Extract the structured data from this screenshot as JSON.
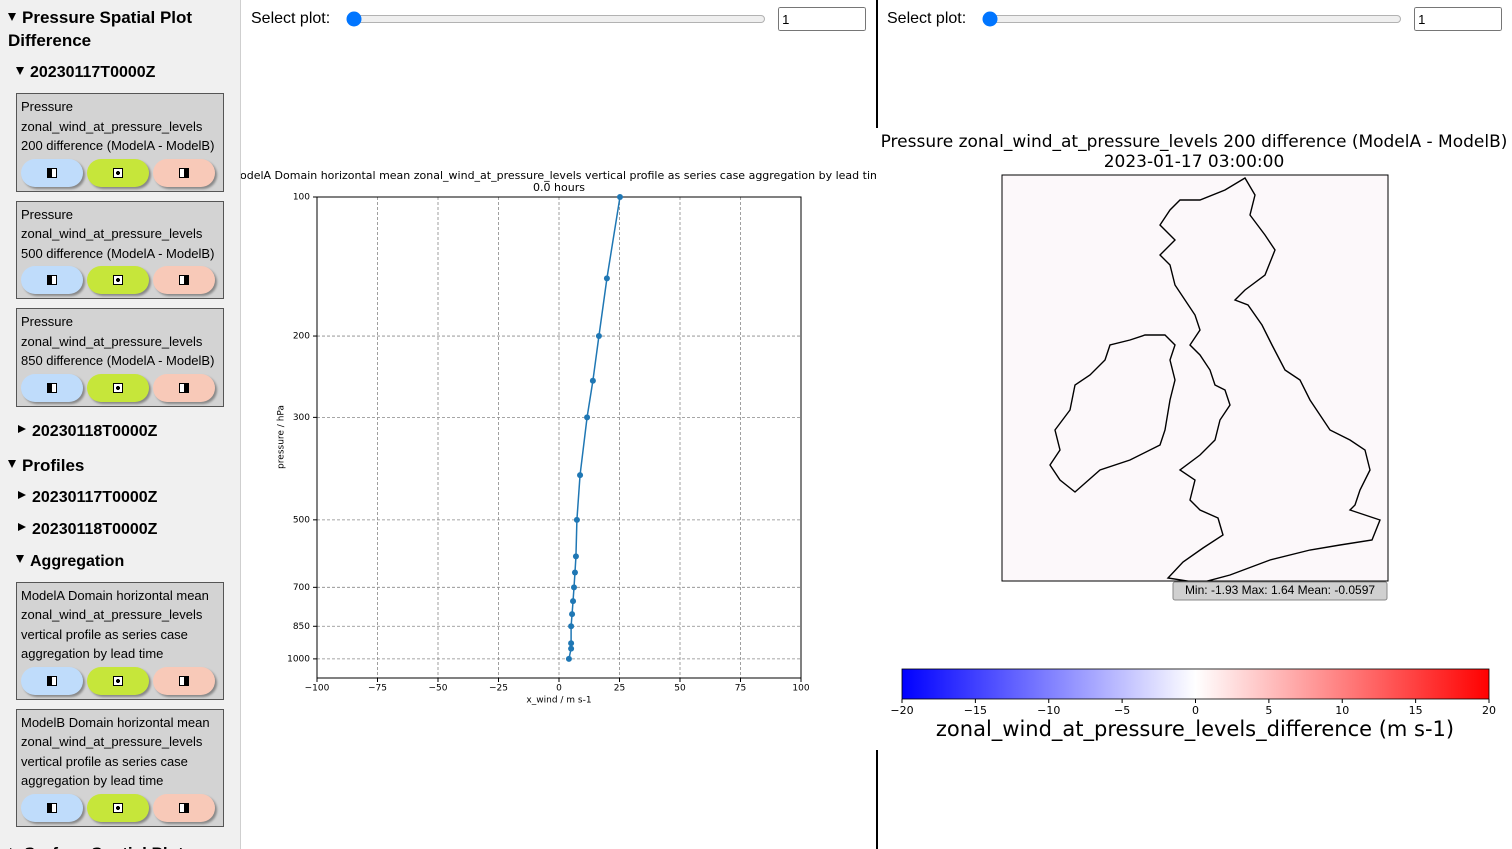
{
  "sidebar": [
    {
      "title": "Pressure Spatial Plot Difference",
      "open": true,
      "children": [
        {
          "title": "20230117T0000Z",
          "open": true,
          "cards": [
            "Pressure zonal_wind_at_pressure_levels 200 difference (ModelA - ModelB)",
            "Pressure zonal_wind_at_pressure_levels 500 difference (ModelA - ModelB)",
            "Pressure zonal_wind_at_pressure_levels 850 difference (ModelA - ModelB)"
          ]
        },
        {
          "title": "20230118T0000Z",
          "open": false
        }
      ]
    },
    {
      "title": "Profiles",
      "open": true,
      "children": [
        {
          "title": "20230117T0000Z",
          "open": false
        },
        {
          "title": "20230118T0000Z",
          "open": false
        },
        {
          "title": "Aggregation",
          "open": true,
          "cards": [
            "ModelA Domain horizontal mean zonal_wind_at_pressure_levels vertical profile as series case aggregation by lead time",
            "ModelB Domain horizontal mean zonal_wind_at_pressure_levels vertical profile as series case aggregation by lead time"
          ]
        }
      ]
    },
    {
      "title": "Surface Spatial Plot",
      "open": false
    }
  ],
  "left_panel": {
    "control": {
      "label": "Select plot:",
      "value": 1
    },
    "chart_data": {
      "type": "line",
      "title": "ModelA Domain horizontal mean zonal_wind_at_pressure_levels vertical profile as series case aggregation by lead time",
      "subtitle": "0.0 hours",
      "x_label": "x_wind / m s-1",
      "y_label": "pressure / hPa",
      "series": [
        {
          "color": "#1f77b4",
          "x": [
            25.2,
            19.8,
            16.5,
            14.0,
            11.6,
            8.7,
            7.4,
            7.0,
            6.6,
            6.2,
            5.8,
            5.4,
            5.0,
            5.0,
            5.0,
            4.1
          ],
          "y": [
            100,
            150,
            200,
            250,
            300,
            400,
            500,
            600,
            650,
            700,
            750,
            800,
            850,
            925,
            950,
            1000
          ]
        }
      ],
      "xlim": [
        -100,
        100
      ],
      "xticks": [
        {
          "value": -100,
          "label": "−100"
        },
        {
          "value": -75,
          "label": "−75"
        },
        {
          "value": -50,
          "label": "−50"
        },
        {
          "value": -25,
          "label": "−25"
        },
        0,
        25,
        50,
        75,
        100
      ],
      "ylim": [
        100,
        1100
      ],
      "y_log": true,
      "y_inverted": true,
      "yticks": [
        100,
        200,
        300,
        500,
        700,
        850,
        1000
      ],
      "grid": true
    }
  },
  "right_panel": {
    "control": {
      "label": "Select plot:",
      "value": 1
    },
    "map": {
      "title": "Pressure zonal_wind_at_pressure_levels 200 difference (ModelA - ModelB)",
      "subtitle": "2023-01-17 03:00:00",
      "stats": "Min: -1.93 Max: 1.64 Mean: -0.0597",
      "colorbar": {
        "lim": [
          -20,
          20
        ],
        "colors": [
          "#0000ff",
          "#ffffff",
          "#ff0000"
        ],
        "ticks": [
          {
            "value": -20,
            "label": "−20"
          },
          {
            "value": -15,
            "label": "−15"
          },
          {
            "value": -10,
            "label": "−10"
          },
          {
            "value": -5,
            "label": "−5"
          },
          0,
          5,
          10,
          15,
          20
        ],
        "label": "zonal_wind_at_pressure_levels_difference (m s-1)"
      }
    }
  }
}
